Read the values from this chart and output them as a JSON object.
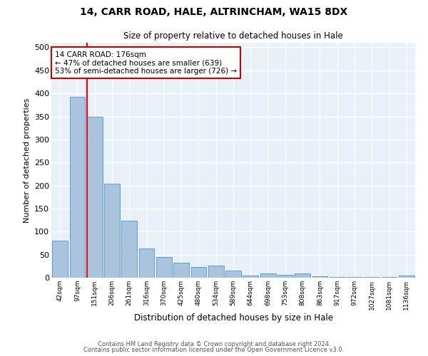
{
  "title": "14, CARR ROAD, HALE, ALTRINCHAM, WA15 8DX",
  "subtitle": "Size of property relative to detached houses in Hale",
  "xlabel": "Distribution of detached houses by size in Hale",
  "ylabel": "Number of detached properties",
  "bar_labels": [
    "42sqm",
    "97sqm",
    "151sqm",
    "206sqm",
    "261sqm",
    "316sqm",
    "370sqm",
    "425sqm",
    "480sqm",
    "534sqm",
    "589sqm",
    "644sqm",
    "698sqm",
    "753sqm",
    "808sqm",
    "863sqm",
    "917sqm",
    "972sqm",
    "1027sqm",
    "1081sqm",
    "1136sqm"
  ],
  "bar_values": [
    80,
    393,
    350,
    204,
    123,
    63,
    45,
    32,
    23,
    26,
    16,
    5,
    10,
    6,
    10,
    3,
    1,
    1,
    1,
    1,
    4
  ],
  "bar_color": "#aac4e0",
  "bar_edge_color": "#5a9fd4",
  "background_color": "#e8f0f8",
  "grid_color": "#ffffff",
  "red_line_x": 2,
  "annotation_text": "14 CARR ROAD: 176sqm\n← 47% of detached houses are smaller (639)\n53% of semi-detached houses are larger (726) →",
  "annotation_box_color": "#ffffff",
  "annotation_box_edge_color": "#cc0000",
  "footer_line1": "Contains HM Land Registry data © Crown copyright and database right 2024.",
  "footer_line2": "Contains public sector information licensed under the Open Government Licence v3.0.",
  "ylim": [
    0,
    510
  ],
  "yticks": [
    0,
    50,
    100,
    150,
    200,
    250,
    300,
    350,
    400,
    450,
    500
  ]
}
